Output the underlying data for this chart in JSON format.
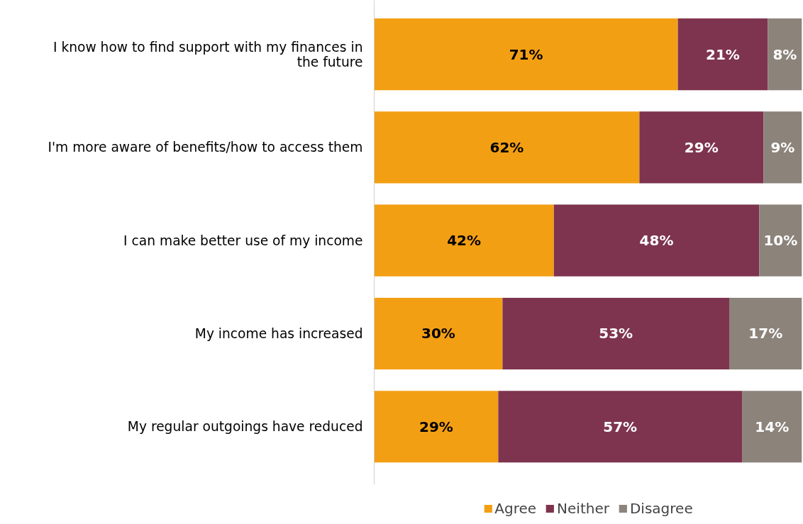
{
  "chart_data": {
    "type": "bar",
    "orientation": "horizontal",
    "stacked": true,
    "categories": [
      "I know how to find support with my finances in the future",
      "I'm more aware of benefits/how to access them",
      "I can make better use of my income",
      "My income has increased",
      "My regular outgoings have reduced"
    ],
    "series": [
      {
        "name": "Agree",
        "color": "#f39f14",
        "values": [
          71,
          62,
          42,
          30,
          29
        ],
        "value_labels": [
          "71%",
          "62%",
          "42%",
          "30%",
          "29%"
        ]
      },
      {
        "name": "Neither",
        "color": "#7e344e",
        "values": [
          21,
          29,
          48,
          53,
          57
        ],
        "value_labels": [
          "21%",
          "29%",
          "48%",
          "53%",
          "57%"
        ]
      },
      {
        "name": "Disagree",
        "color": "#8c837b",
        "values": [
          8,
          9,
          10,
          17,
          14
        ],
        "value_labels": [
          "8%",
          "9%",
          "10%",
          "17%",
          "14%"
        ]
      }
    ],
    "legend": "bottom",
    "grid": false,
    "tick_labels": "y"
  }
}
